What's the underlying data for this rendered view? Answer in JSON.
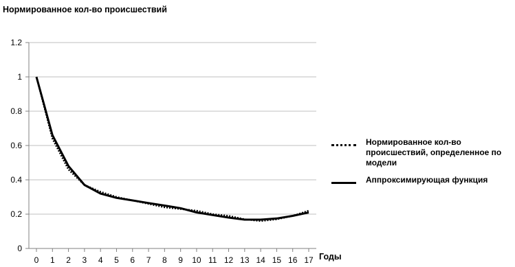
{
  "chart_data": {
    "type": "line",
    "title": "",
    "ylabel": "Нормированное кол-во происшествий",
    "xlabel": "Годы",
    "x": [
      0,
      1,
      2,
      3,
      4,
      5,
      6,
      7,
      8,
      9,
      10,
      11,
      12,
      13,
      14,
      15,
      16,
      17
    ],
    "xticks": [
      "0",
      "1",
      "2",
      "3",
      "4",
      "5",
      "6",
      "7",
      "8",
      "9",
      "10",
      "11",
      "12",
      "13",
      "14",
      "15",
      "16",
      "17"
    ],
    "ylim": [
      0,
      1.2
    ],
    "yticks": [
      "0",
      "0.2",
      "0.4",
      "0.6",
      "0.8",
      "1",
      "1.2"
    ],
    "grid": true,
    "legend_position": "right",
    "series": [
      {
        "name": "Нормированное кол-во происшествий, определенное по модели",
        "style": "dotted",
        "color": "#000000",
        "values": [
          1.0,
          0.64,
          0.46,
          0.37,
          0.33,
          0.3,
          0.28,
          0.26,
          0.24,
          0.23,
          0.22,
          0.2,
          0.19,
          0.17,
          0.16,
          0.17,
          0.19,
          0.22
        ]
      },
      {
        "name": "Аппроксимирующая функция",
        "style": "solid",
        "color": "#000000",
        "values": [
          1.0,
          0.66,
          0.48,
          0.37,
          0.32,
          0.295,
          0.28,
          0.265,
          0.25,
          0.235,
          0.21,
          0.195,
          0.18,
          0.168,
          0.168,
          0.175,
          0.19,
          0.21
        ]
      }
    ]
  }
}
